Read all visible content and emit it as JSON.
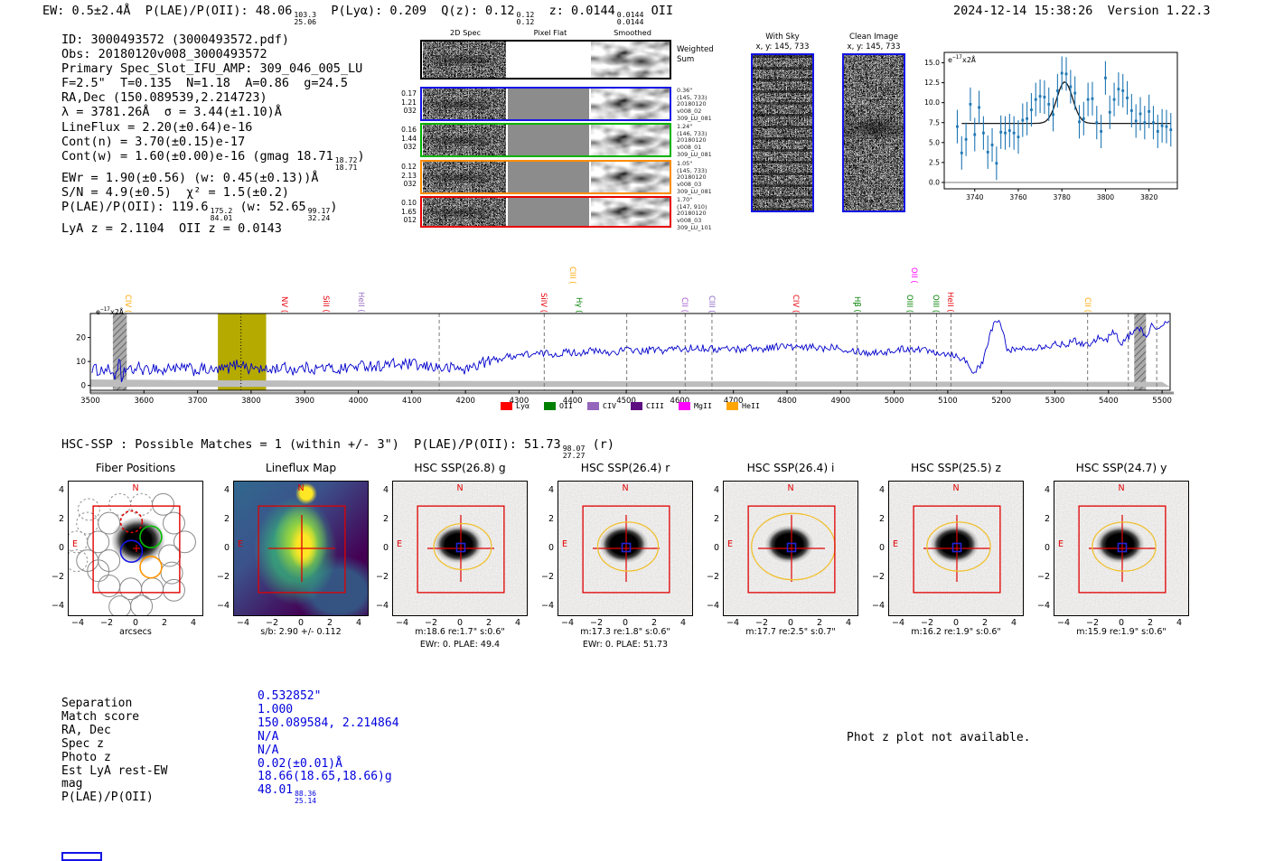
{
  "header": {
    "left_parts": [
      {
        "t": "EW: 0.5±2.4Å  P(LAE)/P(OII): 48.06"
      },
      {
        "f": [
          "103.3",
          "25.06"
        ]
      },
      {
        "t": "  P(Lyα): 0.209  Q(z): 0.12"
      },
      {
        "f": [
          "0.12",
          "0.12"
        ]
      },
      {
        "t": "  z: 0.0144"
      },
      {
        "f": [
          "0.0144",
          "0.0144"
        ]
      },
      {
        "t": " OII"
      }
    ],
    "date": "2024-12-14 15:38:26",
    "version": "Version 1.22.3"
  },
  "info_lines": [
    [
      {
        "t": "ID: 3000493572 (3000493572.pdf)"
      }
    ],
    [
      {
        "t": "Obs: 20180120v008_3000493572"
      }
    ],
    [
      {
        "t": "Primary Spec_Slot_IFU_AMP: 309_046_005_LU"
      }
    ],
    [
      {
        "t": "F=2.5\"  T=0.135  N=1.18  A=0.86  g=24.5"
      }
    ],
    [
      {
        "t": "RA,Dec (150.089539,2.214723)"
      }
    ],
    [
      {
        "t": "λ = 3781.26Å  σ = 3.44(±1.10)Å"
      }
    ],
    [
      {
        "t": "LineFlux = 2.20(±0.64)e-16"
      }
    ],
    [
      {
        "t": "Cont(n) = 3.70(±0.15)e-17"
      }
    ],
    [
      {
        "t": "Cont(w) = 1.60(±0.00)e-16 (gmag 18.71"
      },
      {
        "f": [
          "18.72",
          "18.71"
        ]
      },
      {
        "t": ")"
      }
    ],
    [
      {
        "t": "EWr = 1.90(±0.56) (w: 0.45(±0.13))Å"
      }
    ],
    [
      {
        "t": "S/N = 4.9(±0.5)  χ² = 1.5(±0.2)"
      }
    ],
    [
      {
        "t": "P(LAE)/P(OII): 119.6"
      },
      {
        "f": [
          "175.2",
          "84.01"
        ]
      },
      {
        "t": " (w: 52.65"
      },
      {
        "f": [
          "99.17",
          "32.24"
        ]
      },
      {
        "t": ")"
      }
    ],
    [
      {
        "t": "LyA z = 2.1104  OII z = 0.0143"
      }
    ]
  ],
  "spec2d": {
    "col_titles": [
      "2D Spec",
      "Pixel Flat",
      "Smoothed"
    ],
    "weighted_label": [
      "Weighted",
      "Sum"
    ],
    "rows": [
      {
        "border": "#000000",
        "left": [],
        "right": []
      },
      {
        "border": "#1414e6",
        "left": [
          "0.17",
          "1.21",
          "032"
        ],
        "right": [
          "0.36\"",
          "(145, 733)",
          "20180120",
          "v008_02",
          "309_LU_081"
        ]
      },
      {
        "border": "#00b400",
        "left": [
          "0.16",
          "1.44",
          "032"
        ],
        "right": [
          "1.24\"",
          "(146, 733)",
          "20180120",
          "v008_01",
          "309_LU_081"
        ]
      },
      {
        "border": "#ff8c00",
        "left": [
          "0.12",
          "2.13",
          "032"
        ],
        "right": [
          "1.05\"",
          "(145, 733)",
          "20180120",
          "v008_03",
          "309_LU_081"
        ]
      },
      {
        "border": "#e80000",
        "left": [
          "0.10",
          "1.65",
          "012"
        ],
        "right": [
          "1.70\"",
          "(147, 910)",
          "20180120",
          "v008_03",
          "309_LU_101"
        ]
      }
    ]
  },
  "sky_panels": [
    {
      "title": "With Sky",
      "subtitle": "x, y: 145, 733"
    },
    {
      "title": "Clean Image",
      "subtitle": "x, y: 145, 733"
    }
  ],
  "hsc_header_parts": [
    {
      "t": "HSC-SSP : Possible Matches = 1 (within +/- 3\")  P(LAE)/P(OII): 51.73"
    },
    {
      "f": [
        "98.07",
        "27.27"
      ]
    },
    {
      "t": " (r)"
    }
  ],
  "chart_data": [
    {
      "name": "line_fit_inset",
      "type": "scatter",
      "ylabel_inset": "e−17x2Å",
      "x_start": 3732,
      "x_step": 2,
      "values": [
        7.0,
        3.7,
        5.4,
        9.8,
        6.0,
        9.4,
        6.2,
        3.8,
        4.7,
        2.4,
        6.3,
        6.2,
        6.5,
        6.2,
        5.7,
        7.8,
        8.0,
        9.1,
        10.4,
        10.8,
        10.7,
        9.8,
        8.5,
        11.5,
        13.7,
        13.6,
        12.0,
        11.2,
        7.6,
        8.0,
        10.4,
        10.5,
        7.5,
        6.4,
        13.1,
        8.8,
        10.4,
        11.7,
        11.5,
        10.6,
        9.0,
        7.7,
        8.6,
        7.5,
        8.9,
        7.5,
        6.4,
        7.1,
        7.0,
        6.6
      ],
      "yerr": 2.1,
      "fit": {
        "base": 7.4,
        "amp": 5.2,
        "mu": 3781.3,
        "sigma": 3.6
      },
      "xticks": [
        3740,
        3760,
        3780,
        3800,
        3820
      ],
      "yticks": [
        "0.0",
        "2.5",
        "5.0",
        "7.5",
        "10.0",
        "12.5",
        "15.0"
      ],
      "ytick_vals": [
        0,
        2.5,
        5,
        7.5,
        10,
        12.5,
        15
      ],
      "xlim": [
        3726,
        3833
      ],
      "ylim": [
        -0.8,
        16.3
      ],
      "point_color": "#1f77b4",
      "fit_color": "#1a1a1a"
    },
    {
      "name": "full_spectrum",
      "type": "line",
      "ylabel_inset": "e−17x2Å",
      "xlim": [
        3500,
        5515
      ],
      "ylim": [
        -2,
        30
      ],
      "xticks": [
        3500,
        3600,
        3700,
        3800,
        3900,
        4000,
        4100,
        4200,
        4300,
        4400,
        4500,
        4600,
        4700,
        4800,
        4900,
        5000,
        5100,
        5200,
        5300,
        5400,
        5500
      ],
      "yticks": [
        0,
        10,
        20
      ],
      "line_color": "#0000cc",
      "noise_amp": 1.1,
      "envelope": [
        [
          3500,
          7.5
        ],
        [
          3515,
          6.2
        ],
        [
          3530,
          6.8
        ],
        [
          3542,
          5.5
        ],
        [
          3550,
          3.0
        ],
        [
          3554,
          13.5
        ],
        [
          3558,
          -0.5
        ],
        [
          3562,
          7
        ],
        [
          3575,
          6
        ],
        [
          3590,
          7.5
        ],
        [
          3605,
          6
        ],
        [
          3620,
          7.8
        ],
        [
          3635,
          5.5
        ],
        [
          3650,
          8
        ],
        [
          3665,
          6.5
        ],
        [
          3680,
          7.5
        ],
        [
          3695,
          6
        ],
        [
          3710,
          7
        ],
        [
          3725,
          6
        ],
        [
          3740,
          6.5
        ],
        [
          3755,
          7
        ],
        [
          3770,
          8.5
        ],
        [
          3781,
          9.5
        ],
        [
          3795,
          7
        ],
        [
          3810,
          7.5
        ],
        [
          3825,
          6
        ],
        [
          3840,
          7
        ],
        [
          3860,
          7.5
        ],
        [
          3880,
          6.5
        ],
        [
          3900,
          7.5
        ],
        [
          3920,
          7
        ],
        [
          3940,
          7.5
        ],
        [
          3960,
          6.5
        ],
        [
          3980,
          7.5
        ],
        [
          4000,
          8
        ],
        [
          4020,
          8.5
        ],
        [
          4040,
          8
        ],
        [
          4060,
          9
        ],
        [
          4080,
          8.5
        ],
        [
          4100,
          9
        ],
        [
          4120,
          7.5
        ],
        [
          4140,
          8
        ],
        [
          4160,
          7
        ],
        [
          4180,
          7.5
        ],
        [
          4200,
          6.5
        ],
        [
          4215,
          8
        ],
        [
          4230,
          9.5
        ],
        [
          4250,
          10.5
        ],
        [
          4270,
          11.5
        ],
        [
          4290,
          12.5
        ],
        [
          4310,
          13
        ],
        [
          4330,
          13
        ],
        [
          4350,
          13.5
        ],
        [
          4370,
          13
        ],
        [
          4390,
          14
        ],
        [
          4410,
          13.5
        ],
        [
          4430,
          14.5
        ],
        [
          4450,
          14
        ],
        [
          4470,
          13.5
        ],
        [
          4490,
          14.5
        ],
        [
          4510,
          15
        ],
        [
          4530,
          14
        ],
        [
          4550,
          15
        ],
        [
          4570,
          14.5
        ],
        [
          4590,
          15.5
        ],
        [
          4610,
          15
        ],
        [
          4630,
          16
        ],
        [
          4650,
          15.5
        ],
        [
          4670,
          15
        ],
        [
          4690,
          15.5
        ],
        [
          4710,
          15
        ],
        [
          4730,
          16
        ],
        [
          4750,
          15
        ],
        [
          4770,
          16
        ],
        [
          4790,
          16.5
        ],
        [
          4810,
          16
        ],
        [
          4830,
          15.5
        ],
        [
          4850,
          16
        ],
        [
          4870,
          15.5
        ],
        [
          4890,
          16.5
        ],
        [
          4910,
          15
        ],
        [
          4930,
          14.5
        ],
        [
          4950,
          13.5
        ],
        [
          4970,
          14
        ],
        [
          4990,
          14
        ],
        [
          5010,
          15
        ],
        [
          5030,
          15.5
        ],
        [
          5050,
          15
        ],
        [
          5070,
          14.5
        ],
        [
          5090,
          13.5
        ],
        [
          5110,
          13
        ],
        [
          5130,
          11
        ],
        [
          5150,
          5.5
        ],
        [
          5165,
          9
        ],
        [
          5180,
          22
        ],
        [
          5190,
          28
        ],
        [
          5200,
          24
        ],
        [
          5210,
          16
        ],
        [
          5225,
          14.5
        ],
        [
          5240,
          15.5
        ],
        [
          5260,
          16
        ],
        [
          5280,
          16.5
        ],
        [
          5300,
          17
        ],
        [
          5320,
          17.5
        ],
        [
          5340,
          18.5
        ],
        [
          5360,
          17
        ],
        [
          5380,
          20
        ],
        [
          5395,
          18.5
        ],
        [
          5410,
          22.5
        ],
        [
          5425,
          17.5
        ],
        [
          5440,
          21
        ],
        [
          5455,
          25
        ],
        [
          5468,
          20
        ],
        [
          5480,
          25
        ],
        [
          5495,
          23
        ],
        [
          5512,
          27
        ]
      ],
      "err_band": [
        [
          3500,
          2.5
        ],
        [
          3700,
          2.2
        ],
        [
          4000,
          2.0
        ],
        [
          4400,
          1.8
        ],
        [
          4800,
          1.7
        ],
        [
          5200,
          1.6
        ],
        [
          5515,
          1.5
        ]
      ],
      "highlight_band": {
        "x0": 3738,
        "x1": 3828,
        "center": 3781,
        "color": "#b4aa00"
      },
      "masked_bands": [
        [
          3542,
          3568
        ],
        [
          5448,
          5470
        ]
      ],
      "dashed_lines": [
        4151,
        4347,
        4501,
        4610,
        4660,
        4817,
        4931,
        5030,
        5079,
        5106,
        5361,
        5437,
        5490
      ],
      "annotations": [
        {
          "label": "CIV",
          "wave": 3571,
          "color": "#ffa500",
          "raised": false
        },
        {
          "label": "NV",
          "wave": 3863,
          "color": "#e8000b",
          "raised": false
        },
        {
          "label": "SiII",
          "wave": 3940,
          "color": "#e8000b",
          "raised": false
        },
        {
          "label": "HeII",
          "wave": 4006,
          "color": "#9467bd",
          "raised": false
        },
        {
          "label": "SiIV",
          "wave": 4347,
          "color": "#e8000b",
          "raised": false
        },
        {
          "label": "CIII",
          "wave": 4401,
          "color": "#ffa500",
          "raised": true
        },
        {
          "label": "Hγ",
          "wave": 4413,
          "color": "#008000",
          "raised": false
        },
        {
          "label": "CII",
          "wave": 4610,
          "color": "#a352cc",
          "raised": false
        },
        {
          "label": "CIII",
          "wave": 4660,
          "color": "#8862c5",
          "raised": false
        },
        {
          "label": "CIV",
          "wave": 4817,
          "color": "#e8000b",
          "raised": false
        },
        {
          "label": "Hβ",
          "wave": 4931,
          "color": "#008000",
          "raised": false
        },
        {
          "label": "OIII",
          "wave": 5030,
          "color": "#008000",
          "raised": false
        },
        {
          "label": "OII",
          "wave": 5037,
          "color": "#ff00ff",
          "raised": true
        },
        {
          "label": "OIII",
          "wave": 5079,
          "color": "#008000",
          "raised": false
        },
        {
          "label": "HeII",
          "wave": 5106,
          "color": "#e8000b",
          "raised": false
        },
        {
          "label": "CII",
          "wave": 5361,
          "color": "#ffa500",
          "raised": false
        }
      ],
      "legend": [
        {
          "label": "Lyα",
          "color": "#ff0000"
        },
        {
          "label": "OII",
          "color": "#008000"
        },
        {
          "label": "CIV",
          "color": "#9467bd"
        },
        {
          "label": "CIII",
          "color": "#5c0d80"
        },
        {
          "label": "MgII",
          "color": "#ff00ff"
        },
        {
          "label": "HeII",
          "color": "#ffa500"
        }
      ]
    }
  ],
  "cutouts": {
    "yticks": [
      "4",
      "2",
      "0",
      "−2",
      "−4"
    ],
    "xticks": [
      "−4",
      "−2",
      "0",
      "2",
      "4"
    ],
    "north": "N",
    "east": "E",
    "panels": [
      {
        "type": "fiber",
        "title": "Fiber Positions",
        "captions": [
          "arcsecs"
        ]
      },
      {
        "type": "lineflux",
        "title": "Lineflux Map",
        "captions": [
          "s/b: 2.90 +/- 0.112"
        ]
      },
      {
        "type": "hsc",
        "title": "HSC SSP(26.8) g",
        "captions": [
          "m:18.6 re:1.7\" s:0.6\"",
          "EWr: 0. PLAE: 49.4"
        ],
        "ellipse": [
          2.0,
          1.6
        ]
      },
      {
        "type": "hsc",
        "title": "HSC SSP(26.4) r",
        "captions": [
          "m:17.3 re:1.8\" s:0.6\"",
          "EWr: 0. PLAE: 51.73"
        ],
        "ellipse": [
          2.1,
          1.7
        ]
      },
      {
        "type": "hsc",
        "title": "HSC SSP(26.4) i",
        "captions": [
          "m:17.7 re:2.5\" s:0.7\""
        ],
        "ellipse": [
          2.9,
          2.3
        ]
      },
      {
        "type": "hsc",
        "title": "HSC SSP(25.5) z",
        "captions": [
          "m:16.2 re:1.9\" s:0.6\""
        ],
        "ellipse": [
          2.2,
          1.7
        ]
      },
      {
        "type": "hsc",
        "title": "HSC SSP(24.7) y",
        "captions": [
          "m:15.9 re:1.9\" s:0.6\""
        ],
        "ellipse": [
          2.2,
          1.7
        ]
      }
    ]
  },
  "match_table": {
    "labels": [
      "Separation",
      "Match score",
      "RA, Dec",
      "Spec z",
      "Photo z",
      "Est LyA rest-EW",
      "mag",
      "P(LAE)/P(OII)"
    ],
    "values": [
      [
        {
          "t": "0.532852\""
        }
      ],
      [
        {
          "t": "1.000"
        }
      ],
      [
        {
          "t": "150.089584, 2.214864"
        }
      ],
      [
        {
          "t": "N/A"
        }
      ],
      [
        {
          "t": "N/A"
        }
      ],
      [
        {
          "t": "0.02(±0.01)Å"
        }
      ],
      [
        {
          "t": "18.66(18.65,18.66)g"
        }
      ],
      [
        {
          "t": "48.01"
        },
        {
          "f": [
            "88.36",
            "25.14"
          ]
        }
      ]
    ]
  },
  "notes": {
    "photz": "Phot z plot not available."
  }
}
